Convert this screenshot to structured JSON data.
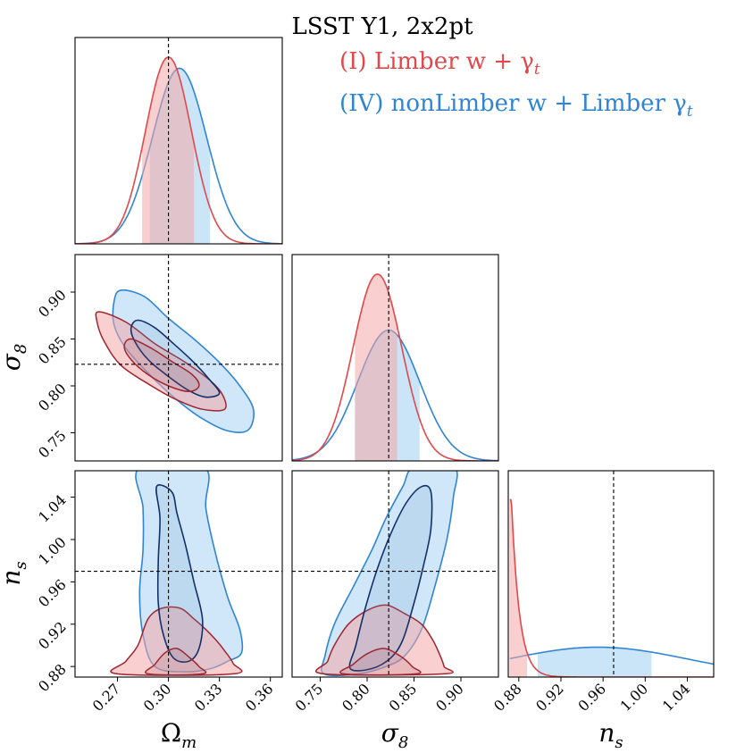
{
  "chart_data": {
    "type": "corner",
    "title": "LSST Y1, 2x2pt",
    "legend": {
      "placement": "top-right",
      "entries": [
        {
          "name": "(I) Limber w + γ",
          "subscript": "t",
          "color": "#e0484b"
        },
        {
          "name": "(IV) nonLimber w + Limber γ",
          "subscript": "t",
          "color": "#2f85d3"
        }
      ]
    },
    "colors": {
      "red_line": "#e0484b",
      "red_fill": "#f4a7a8",
      "red_dark": "#9e2631",
      "blue_line": "#2f85d3",
      "blue_fill": "#9fd0f3",
      "blue_dark": "#13306a"
    },
    "parameters": [
      {
        "key": "Om",
        "symbol": "Ω",
        "subscript": "m",
        "range": [
          0.245,
          0.367
        ],
        "ticks": [
          "0.27",
          "0.30",
          "0.33",
          "0.36"
        ],
        "truth": 0.3
      },
      {
        "key": "s8",
        "symbol": "σ",
        "subscript": "8",
        "range": [
          0.72,
          0.94
        ],
        "ticks": [
          "0.75",
          "0.80",
          "0.85",
          "0.90"
        ],
        "truth": 0.823
      },
      {
        "key": "ns",
        "symbol": "n",
        "subscript": "s",
        "range": [
          0.87,
          1.065
        ],
        "ticks": [
          "0.88",
          "0.92",
          "0.96",
          "1.00",
          "1.04"
        ],
        "truth": 0.97
      }
    ],
    "diag_ticks": {
      "s8": [
        "0.75",
        "0.80",
        "0.85",
        "0.90"
      ],
      "ns": [
        "0.88",
        "0.92",
        "0.96",
        "1.00",
        "1.04"
      ]
    },
    "marginals": {
      "Om": {
        "I": {
          "mean": 0.3,
          "sigma": 0.0135,
          "peak": 1.0,
          "band": [
            0.2845,
            0.315
          ]
        },
        "IV": {
          "mean": 0.3065,
          "sigma": 0.016,
          "peak": 0.94,
          "band": [
            0.289,
            0.3245
          ]
        }
      },
      "s8": {
        "I": {
          "mean": 0.811,
          "sigma": 0.026,
          "peak": 1.0,
          "band": [
            0.787,
            0.832
          ]
        },
        "IV": {
          "mean": 0.823,
          "sigma": 0.033,
          "peak": 0.7,
          "band": [
            0.787,
            0.856
          ]
        }
      },
      "ns": {
        "I": {
          "peak_at": 0.873,
          "peak": 0.95,
          "band": [
            0.871,
            0.888
          ],
          "decay": 0.0075
        },
        "IV": {
          "mean": 0.955,
          "sigma": 0.085,
          "peak": 0.16,
          "band": [
            0.898,
            1.006
          ]
        }
      }
    },
    "contours": {
      "s8_vs_Om": {
        "I": {
          "outer": [
            [
              0.259,
              0.879
            ],
            [
              0.275,
              0.868
            ],
            [
              0.292,
              0.845
            ],
            [
              0.31,
              0.825
            ],
            [
              0.325,
              0.805
            ],
            [
              0.332,
              0.79
            ],
            [
              0.333,
              0.775
            ],
            [
              0.32,
              0.775
            ],
            [
              0.305,
              0.785
            ],
            [
              0.29,
              0.8
            ],
            [
              0.272,
              0.822
            ],
            [
              0.262,
              0.848
            ],
            [
              0.258,
              0.868
            ]
          ],
          "inner": [
            [
              0.278,
              0.85
            ],
            [
              0.29,
              0.84
            ],
            [
              0.302,
              0.826
            ],
            [
              0.314,
              0.812
            ],
            [
              0.318,
              0.8
            ],
            [
              0.312,
              0.794
            ],
            [
              0.3,
              0.8
            ],
            [
              0.288,
              0.812
            ],
            [
              0.278,
              0.828
            ],
            [
              0.274,
              0.842
            ]
          ]
        },
        "IV": {
          "outer": [
            [
              0.272,
              0.902
            ],
            [
              0.286,
              0.895
            ],
            [
              0.3,
              0.872
            ],
            [
              0.315,
              0.85
            ],
            [
              0.33,
              0.825
            ],
            [
              0.342,
              0.8
            ],
            [
              0.35,
              0.775
            ],
            [
              0.347,
              0.753
            ],
            [
              0.335,
              0.752
            ],
            [
              0.32,
              0.765
            ],
            [
              0.305,
              0.785
            ],
            [
              0.29,
              0.81
            ],
            [
              0.275,
              0.84
            ],
            [
              0.268,
              0.865
            ],
            [
              0.268,
              0.89
            ]
          ],
          "inner": [
            [
              0.282,
              0.87
            ],
            [
              0.292,
              0.862
            ],
            [
              0.303,
              0.845
            ],
            [
              0.315,
              0.825
            ],
            [
              0.325,
              0.805
            ],
            [
              0.33,
              0.792
            ],
            [
              0.322,
              0.788
            ],
            [
              0.312,
              0.795
            ],
            [
              0.3,
              0.81
            ],
            [
              0.288,
              0.828
            ],
            [
              0.28,
              0.848
            ],
            [
              0.278,
              0.862
            ]
          ]
        }
      },
      "ns_vs_Om": {
        "I": {
          "outer": [
            [
              0.27,
              0.873
            ],
            [
              0.275,
              0.885
            ],
            [
              0.282,
              0.9
            ],
            [
              0.288,
              0.925
            ],
            [
              0.296,
              0.935
            ],
            [
              0.307,
              0.935
            ],
            [
              0.315,
              0.925
            ],
            [
              0.322,
              0.915
            ],
            [
              0.328,
              0.905
            ],
            [
              0.333,
              0.895
            ],
            [
              0.338,
              0.883
            ],
            [
              0.338,
              0.873
            ]
          ],
          "inner": [
            [
              0.288,
              0.873
            ],
            [
              0.292,
              0.882
            ],
            [
              0.298,
              0.893
            ],
            [
              0.305,
              0.897
            ],
            [
              0.312,
              0.889
            ],
            [
              0.318,
              0.88
            ],
            [
              0.32,
              0.873
            ]
          ]
        },
        "IV": {
          "outer": [
            [
              0.283,
              1.068
            ],
            [
              0.285,
              1.03
            ],
            [
              0.285,
              0.99
            ],
            [
              0.283,
              0.95
            ],
            [
              0.285,
              0.91
            ],
            [
              0.292,
              0.88
            ],
            [
              0.31,
              0.875
            ],
            [
              0.325,
              0.878
            ],
            [
              0.335,
              0.885
            ],
            [
              0.343,
              0.893
            ],
            [
              0.342,
              0.915
            ],
            [
              0.335,
              0.945
            ],
            [
              0.328,
              0.985
            ],
            [
              0.322,
              1.03
            ],
            [
              0.321,
              1.068
            ]
          ],
          "inner": [
            [
              0.293,
              1.05
            ],
            [
              0.295,
              1.02
            ],
            [
              0.294,
              0.98
            ],
            [
              0.294,
              0.94
            ],
            [
              0.297,
              0.91
            ],
            [
              0.303,
              0.888
            ],
            [
              0.312,
              0.885
            ],
            [
              0.318,
              0.897
            ],
            [
              0.32,
              0.925
            ],
            [
              0.315,
              0.96
            ],
            [
              0.31,
              0.995
            ],
            [
              0.305,
              1.025
            ],
            [
              0.302,
              1.045
            ]
          ]
        }
      },
      "ns_vs_s8": {
        "I": {
          "outer": [
            [
              0.754,
              0.873
            ],
            [
              0.758,
              0.885
            ],
            [
              0.765,
              0.9
            ],
            [
              0.78,
              0.92
            ],
            [
              0.8,
              0.933
            ],
            [
              0.82,
              0.938
            ],
            [
              0.84,
              0.93
            ],
            [
              0.858,
              0.92
            ],
            [
              0.87,
              0.905
            ],
            [
              0.878,
              0.89
            ],
            [
              0.882,
              0.88
            ],
            [
              0.882,
              0.873
            ]
          ],
          "inner": [
            [
              0.775,
              0.873
            ],
            [
              0.785,
              0.882
            ],
            [
              0.8,
              0.892
            ],
            [
              0.818,
              0.897
            ],
            [
              0.835,
              0.89
            ],
            [
              0.848,
              0.88
            ],
            [
              0.852,
              0.873
            ]
          ]
        },
        "IV": {
          "outer": [
            [
              0.754,
              0.873
            ],
            [
              0.755,
              0.89
            ],
            [
              0.765,
              0.92
            ],
            [
              0.785,
              0.955
            ],
            [
              0.805,
              0.99
            ],
            [
              0.82,
              1.02
            ],
            [
              0.838,
              1.05
            ],
            [
              0.85,
              1.068
            ],
            [
              0.893,
              1.068
            ],
            [
              0.892,
              1.04
            ],
            [
              0.885,
              1.0
            ],
            [
              0.872,
              0.955
            ],
            [
              0.858,
              0.915
            ],
            [
              0.84,
              0.89
            ],
            [
              0.82,
              0.88
            ],
            [
              0.79,
              0.873
            ]
          ],
          "inner": [
            [
              0.782,
              0.878
            ],
            [
              0.788,
              0.9
            ],
            [
              0.798,
              0.935
            ],
            [
              0.81,
              0.97
            ],
            [
              0.825,
              1.005
            ],
            [
              0.842,
              1.035
            ],
            [
              0.858,
              1.05
            ],
            [
              0.868,
              1.045
            ],
            [
              0.868,
              1.01
            ],
            [
              0.86,
              0.975
            ],
            [
              0.85,
              0.94
            ],
            [
              0.838,
              0.905
            ],
            [
              0.825,
              0.888
            ],
            [
              0.805,
              0.878
            ]
          ]
        }
      }
    }
  }
}
